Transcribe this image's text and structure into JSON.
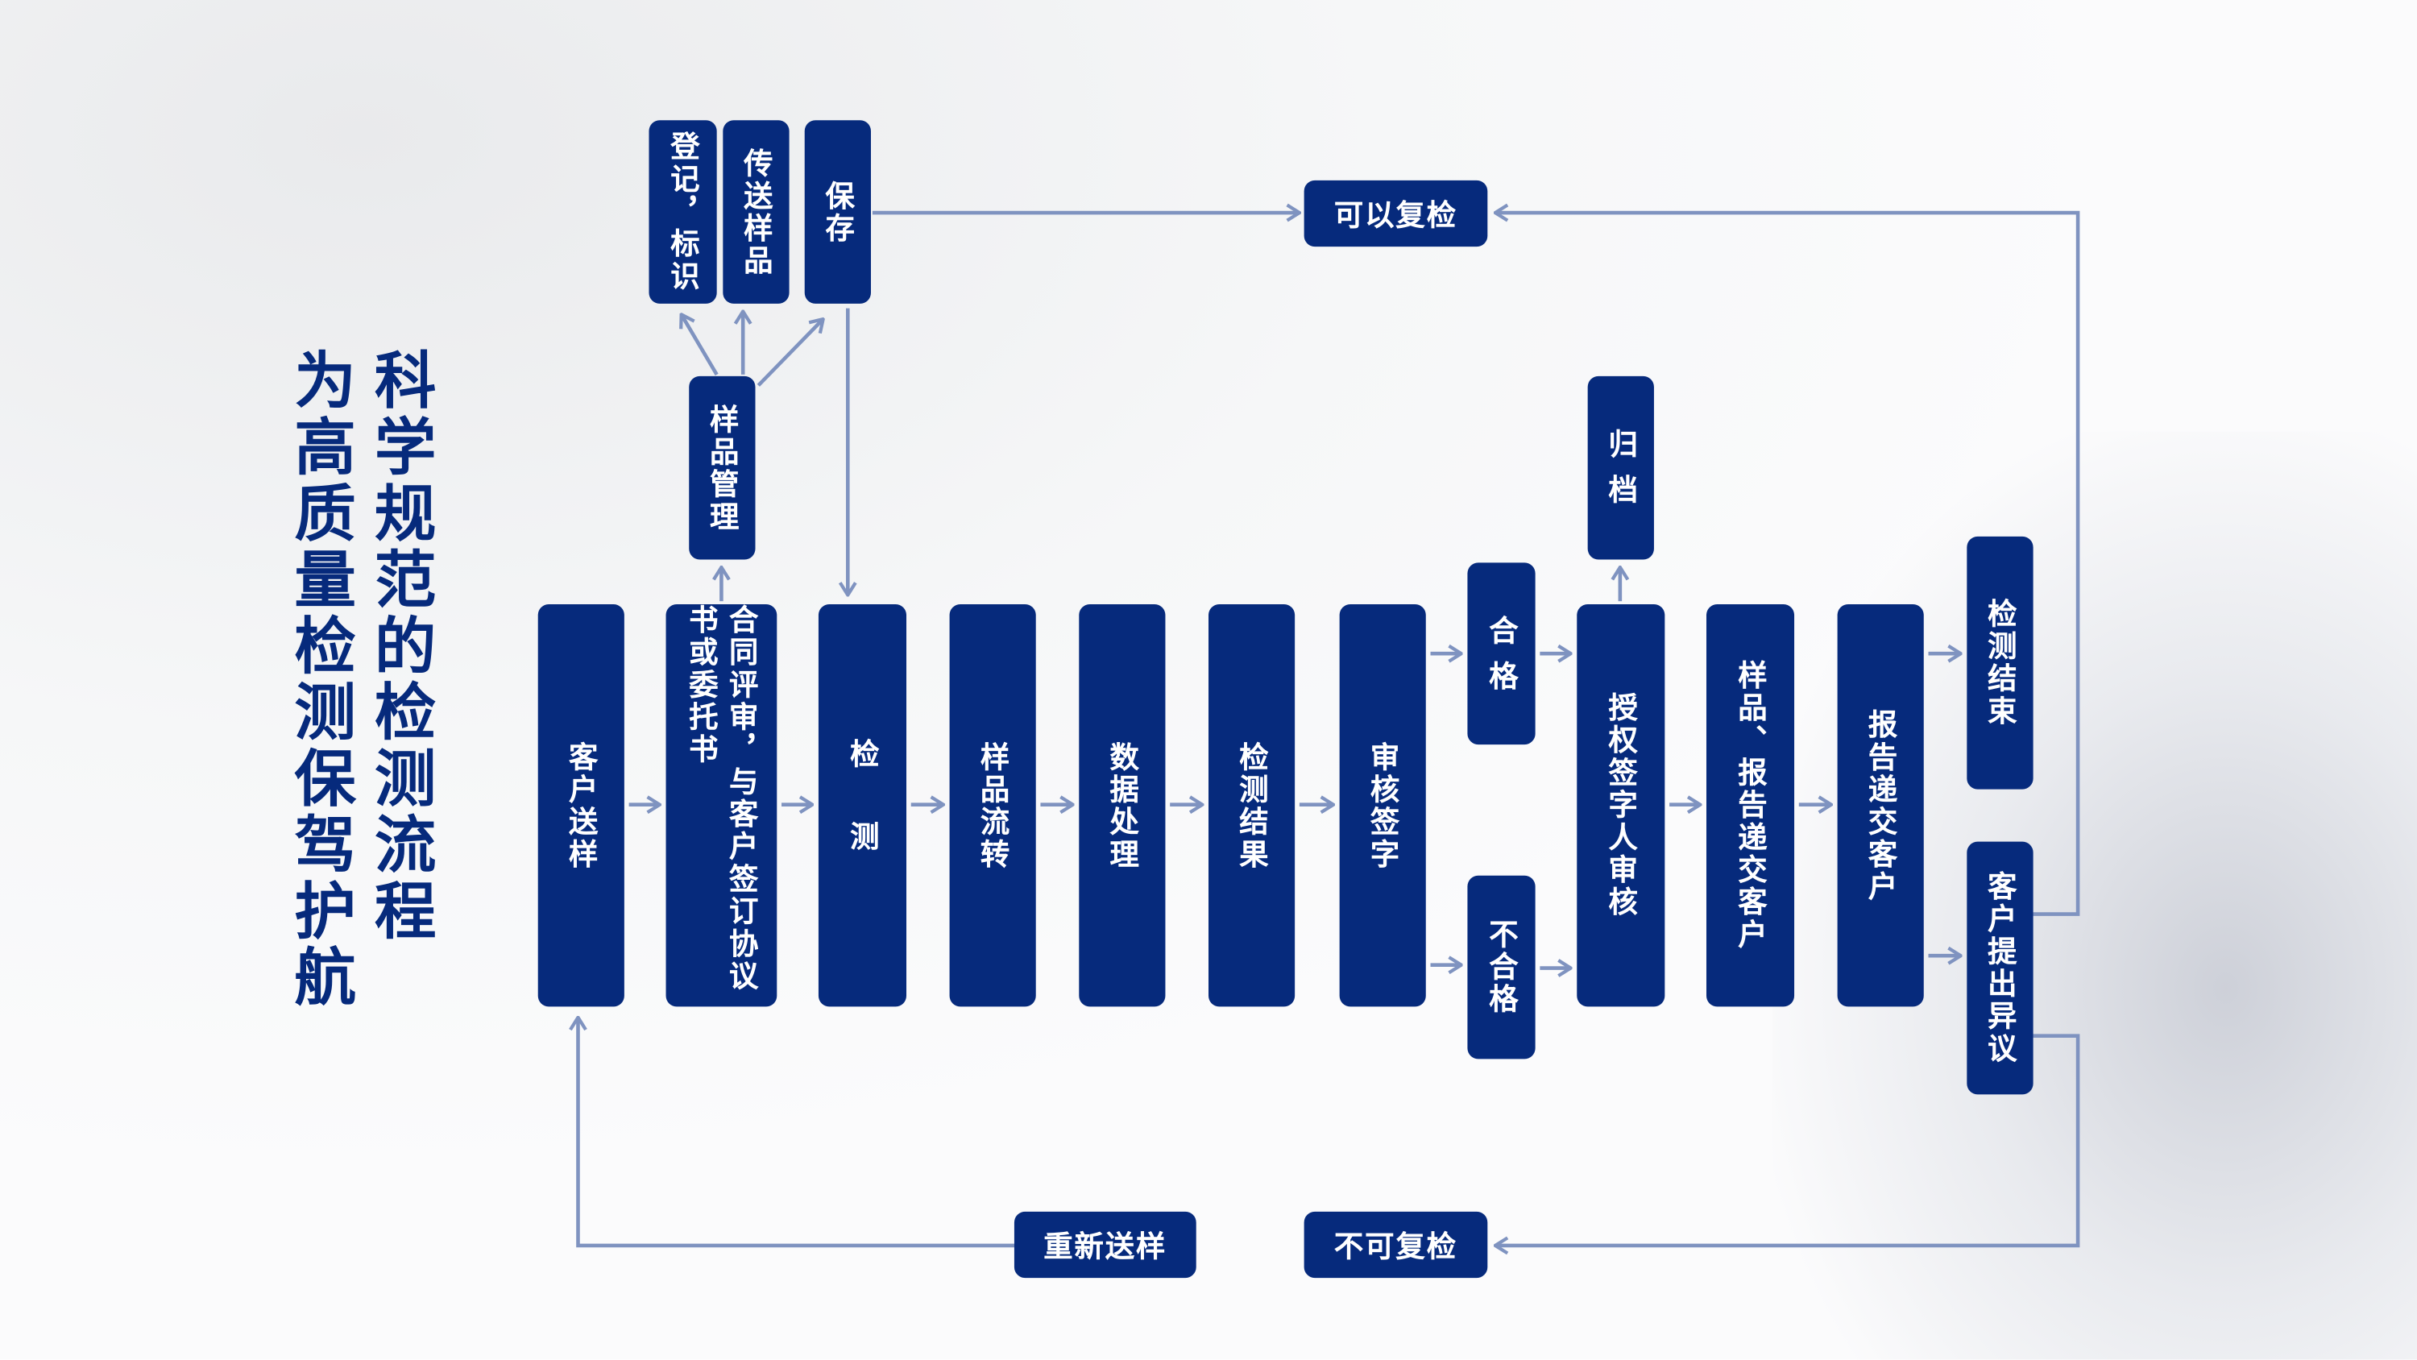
{
  "title": {
    "main": "科学规范的检测流程",
    "sub": "为高质量检测保驾护航"
  },
  "colors": {
    "box": "#062a7c",
    "connector": "#7f93c0",
    "text": "#ffffff"
  },
  "nodes": {
    "register": "登记，标识",
    "transfer": "传送样品",
    "store": "保存",
    "sample_mgmt": "样品管理",
    "recheck": "可以复检",
    "client_send": "客户送样",
    "contract": "合同评审，与客户签订协议书或委托书",
    "test": "检 测",
    "circulation": "样品流转",
    "data": "数据处理",
    "result": "检测结果",
    "review": "审核签字",
    "pass": "合 格",
    "fail": "不合格",
    "archive": "归 档",
    "authorize": "授权签字人审核",
    "deliver_both": "样品、报告递交客户",
    "deliver_report": "报告递交客户",
    "end": "检测结束",
    "objection": "客户提出异议",
    "resend": "重新送样",
    "no_recheck": "不可复检"
  }
}
